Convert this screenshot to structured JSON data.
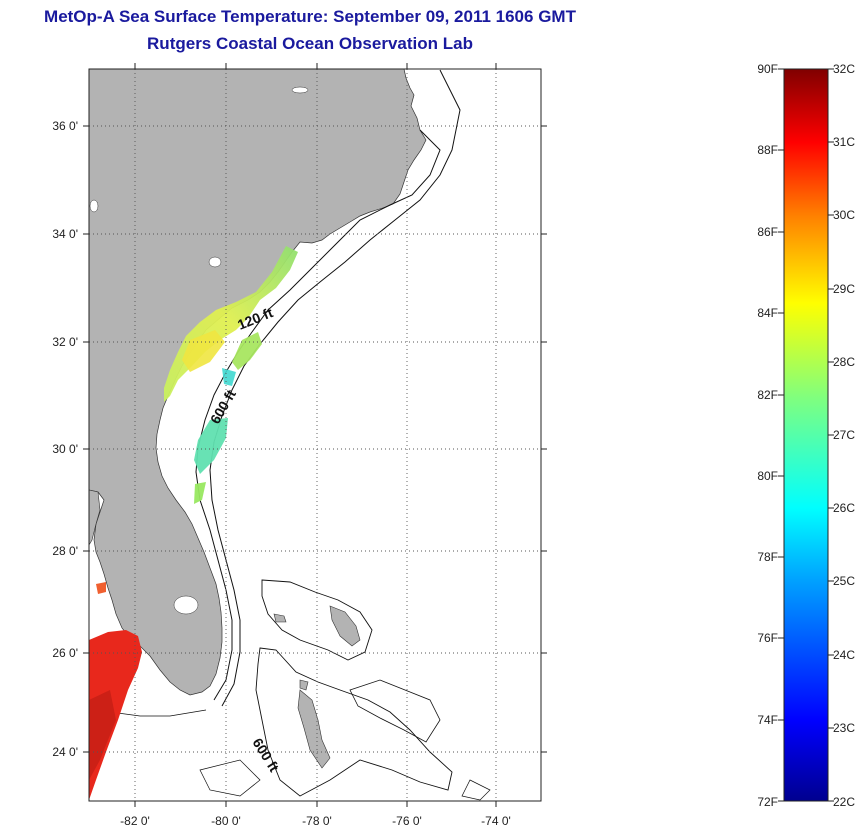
{
  "title": "MetOp-A Sea Surface Temperature:  September 09, 2011 1606 GMT",
  "subtitle": "Rutgers Coastal Ocean Observation Lab",
  "map": {
    "lat_ticks": [
      "36 0'",
      "34 0'",
      "32 0'",
      "30 0'",
      "28 0'",
      "26 0'",
      "24 0'"
    ],
    "lon_ticks": [
      "-82 0'",
      "-80 0'",
      "-78 0'",
      "-76 0'",
      "-74 0'"
    ],
    "contour_labels": [
      "120 ft",
      "600 ft",
      "600 ft"
    ],
    "colors": {
      "land": "#b3b3b3",
      "ocean": "#ffffff",
      "grid": "#555555"
    }
  },
  "colorbar": {
    "fahrenheit": [
      "90F",
      "88F",
      "86F",
      "84F",
      "82F",
      "80F",
      "78F",
      "76F",
      "74F",
      "72F"
    ],
    "celsius": [
      "32C",
      "31C",
      "30C",
      "29C",
      "28C",
      "27C",
      "26C",
      "25C",
      "24C",
      "23C",
      "22C"
    ],
    "colormap": [
      "#00008f",
      "#0000ff",
      "#00a0ff",
      "#00ffff",
      "#7fff7f",
      "#ffff00",
      "#ff8000",
      "#ff0000",
      "#800000"
    ]
  }
}
